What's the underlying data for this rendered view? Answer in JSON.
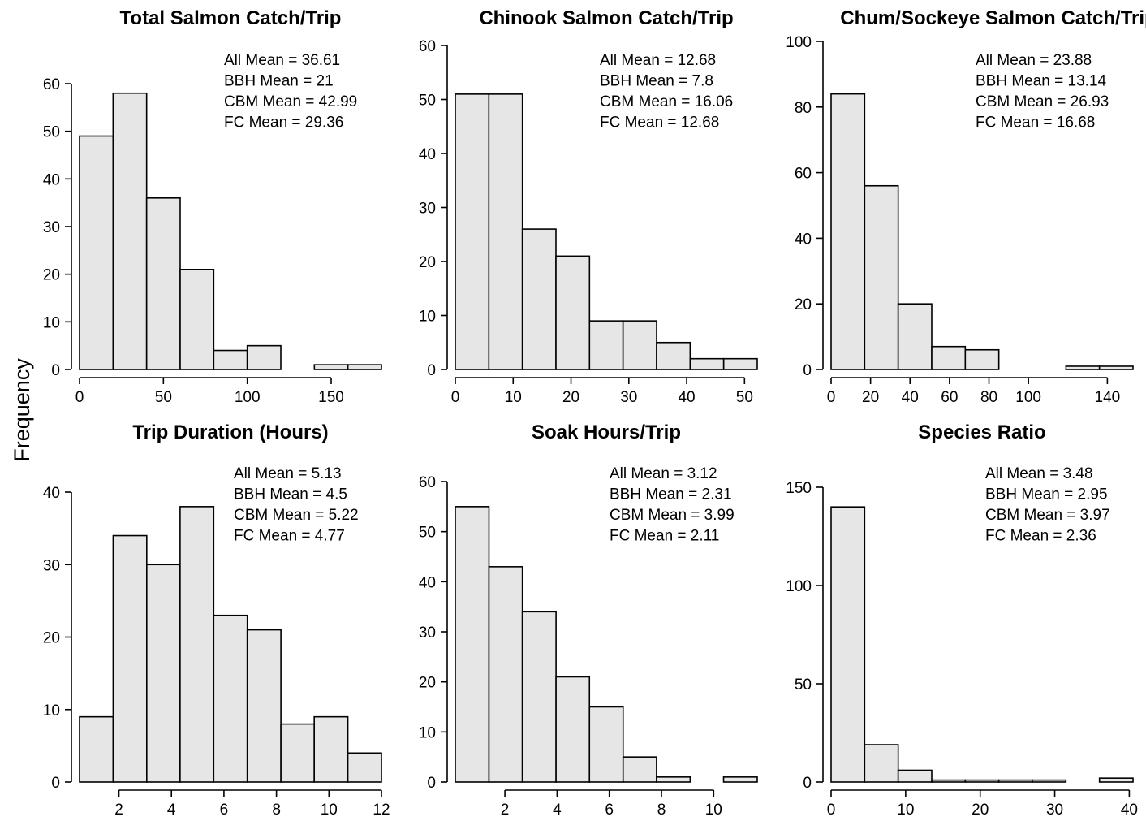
{
  "figure": {
    "ylabel": "Frequency",
    "bar_color": "#e6e6e6",
    "stroke_color": "#000000"
  },
  "chart_data": [
    {
      "type": "bar",
      "title": "Total Salmon Catch/Trip",
      "bin_edges": [
        0,
        20,
        40,
        60,
        80,
        100,
        120,
        140,
        160,
        180
      ],
      "values": [
        49,
        58,
        36,
        21,
        4,
        5,
        0,
        1,
        1
      ],
      "xlim": [
        0,
        180
      ],
      "ylim": [
        0,
        60
      ],
      "xticks": [
        0,
        50,
        100,
        150
      ],
      "yticks": [
        0,
        10,
        20,
        30,
        40,
        50,
        60
      ],
      "annotations": [
        "All Mean = 36.61",
        "BBH Mean = 21",
        "CBM Mean = 42.99",
        "FC Mean = 29.36"
      ]
    },
    {
      "type": "bar",
      "title": "Chinook Salmon Catch/Trip",
      "bin_edges": [
        0,
        5.8,
        11.6,
        17.4,
        23.2,
        29,
        34.8,
        40.6,
        46.4,
        52.2
      ],
      "values": [
        51,
        51,
        26,
        21,
        9,
        9,
        5,
        2,
        2
      ],
      "xlim": [
        0,
        52.2
      ],
      "ylim": [
        0,
        60
      ],
      "xticks": [
        0,
        10,
        20,
        30,
        40,
        50
      ],
      "yticks": [
        0,
        10,
        20,
        30,
        40,
        50,
        60
      ],
      "annotations": [
        "All Mean = 12.68",
        "BBH Mean = 7.8",
        "CBM Mean = 16.06",
        "FC Mean = 12.68"
      ]
    },
    {
      "type": "bar",
      "title": "Chum/Sockeye Salmon Catch/Trip",
      "bin_edges": [
        0,
        17,
        34,
        51,
        68,
        85,
        102,
        119,
        136,
        153
      ],
      "values": [
        84,
        56,
        20,
        7,
        6,
        0,
        0,
        1,
        1
      ],
      "xlim": [
        0,
        153
      ],
      "ylim": [
        0,
        100
      ],
      "xticks": [
        0,
        20,
        40,
        60,
        80,
        100,
        140
      ],
      "yticks": [
        0,
        20,
        40,
        60,
        80,
        100
      ],
      "annotations": [
        "All Mean = 23.88",
        "BBH Mean = 13.14",
        "CBM Mean = 26.93",
        "FC Mean = 16.68"
      ]
    },
    {
      "type": "bar",
      "title": "Trip Duration (Hours)",
      "bin_edges": [
        0.5,
        1.78,
        3.06,
        4.33,
        5.61,
        6.89,
        8.17,
        9.44,
        10.72,
        12
      ],
      "values": [
        9,
        34,
        30,
        38,
        23,
        21,
        8,
        9,
        4
      ],
      "xlim": [
        0.5,
        12
      ],
      "ylim": [
        0,
        40
      ],
      "xticks": [
        2,
        4,
        6,
        8,
        10,
        12
      ],
      "yticks": [
        0,
        10,
        20,
        30,
        40
      ],
      "annotations": [
        "All Mean = 5.13",
        "BBH Mean = 4.5",
        "CBM Mean = 5.22",
        "FC Mean = 4.77"
      ]
    },
    {
      "type": "bar",
      "title": "Soak Hours/Trip",
      "bin_edges": [
        0.1,
        1.39,
        2.67,
        3.96,
        5.24,
        6.53,
        7.81,
        9.1,
        10.38,
        11.67
      ],
      "values": [
        55,
        43,
        34,
        21,
        15,
        5,
        1,
        0,
        1
      ],
      "xlim": [
        0.1,
        11.67
      ],
      "ylim": [
        0,
        60
      ],
      "xticks": [
        2,
        4,
        6,
        8,
        10
      ],
      "yticks": [
        0,
        10,
        20,
        30,
        40,
        50,
        60
      ],
      "annotations": [
        "All Mean = 3.12",
        "BBH Mean = 2.31",
        "CBM Mean = 3.99",
        "FC Mean = 2.11"
      ]
    },
    {
      "type": "bar",
      "title": "Species Ratio",
      "bin_edges": [
        0,
        4.5,
        9,
        13.5,
        18,
        22.5,
        27,
        31.5,
        36,
        40.5
      ],
      "values": [
        140,
        19,
        6,
        1,
        1,
        1,
        1,
        0,
        2
      ],
      "xlim": [
        0,
        40.5
      ],
      "ylim": [
        0,
        150
      ],
      "xticks": [
        0,
        10,
        20,
        30,
        40
      ],
      "yticks": [
        0,
        50,
        100,
        150
      ],
      "annotations": [
        "All Mean = 3.48",
        "BBH Mean = 2.95",
        "CBM Mean = 3.97",
        "FC Mean = 2.36"
      ]
    }
  ]
}
